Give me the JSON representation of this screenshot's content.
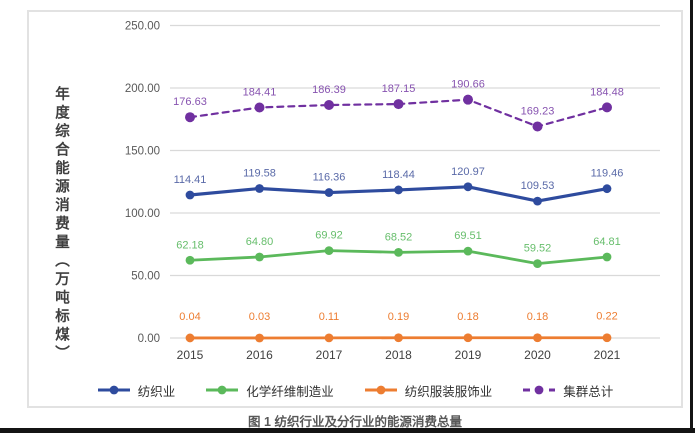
{
  "caption": "图 1 纺织行业及分行业的能源消费总量",
  "colors": {
    "grid": "#D9D9D9",
    "tick_text": "#595959",
    "year_text": "#404040",
    "axis_title_text": "#3F3F3F",
    "caption_text": "#595959",
    "card_border": "#E2E2E2",
    "doc_border": "#141414"
  },
  "chart_data": {
    "type": "line",
    "title": "图 1 纺织行业及分行业的能源消费总量",
    "ylabel": "年度综合能源消费量（万吨标煤）",
    "xlabel": "",
    "categories": [
      "2015",
      "2016",
      "2017",
      "2018",
      "2019",
      "2020",
      "2021"
    ],
    "ylim": [
      0,
      250
    ],
    "grid": true,
    "legend_position": "bottom",
    "data_labels": true,
    "yticks": [
      {
        "value": 250,
        "label": "250.00"
      },
      {
        "value": 200,
        "label": "200.00"
      },
      {
        "value": 150,
        "label": "150.00"
      },
      {
        "value": 100,
        "label": "100.00"
      },
      {
        "value": 50,
        "label": "50.00"
      },
      {
        "value": 0,
        "label": "0.00"
      }
    ],
    "series": [
      {
        "key": "textile",
        "name": "纺织业",
        "color": "#2E4B9E",
        "label_color": "#5A6AA8",
        "dash": "solid",
        "line_width": 3.2,
        "marker_radius": 4.4,
        "label_dy": -12,
        "values": [
          114.41,
          119.58,
          116.36,
          118.44,
          120.97,
          109.53,
          119.46
        ],
        "labels": [
          "114.41",
          "119.58",
          "116.36",
          "118.44",
          "120.97",
          "109.53",
          "119.46"
        ]
      },
      {
        "key": "chemical-fiber",
        "name": "化学纤维制造业",
        "color": "#5BB95B",
        "label_color": "#67BE6C",
        "dash": "solid",
        "line_width": 2.8,
        "marker_radius": 4.4,
        "label_dy": -12,
        "values": [
          62.18,
          64.8,
          69.92,
          68.52,
          69.51,
          59.52,
          64.81
        ],
        "labels": [
          "62.18",
          "64.80",
          "69.92",
          "68.52",
          "69.51",
          "59.52",
          "64.81"
        ]
      },
      {
        "key": "apparel",
        "name": "纺织服装服饰业",
        "color": "#ED7D31",
        "label_color": "#ED7D31",
        "dash": "solid",
        "line_width": 2.8,
        "marker_radius": 4.4,
        "label_dy": -18,
        "values": [
          0.04,
          0.03,
          0.11,
          0.19,
          0.18,
          0.18,
          0.22
        ],
        "labels": [
          "0.04",
          "0.03",
          "0.11",
          "0.19",
          "0.18",
          "0.18",
          "0.22"
        ]
      },
      {
        "key": "cluster-total",
        "name": "集群总计",
        "color": "#7030A0",
        "label_color": "#8753B0",
        "dash": "dashed",
        "line_width": 2.2,
        "marker_radius": 5,
        "label_dy": -12,
        "values": [
          176.63,
          184.41,
          186.39,
          187.15,
          190.66,
          169.23,
          184.48
        ],
        "labels": [
          "176.63",
          "184.41",
          "186.39",
          "187.15",
          "190.66",
          "169.23",
          "184.48"
        ]
      }
    ]
  }
}
